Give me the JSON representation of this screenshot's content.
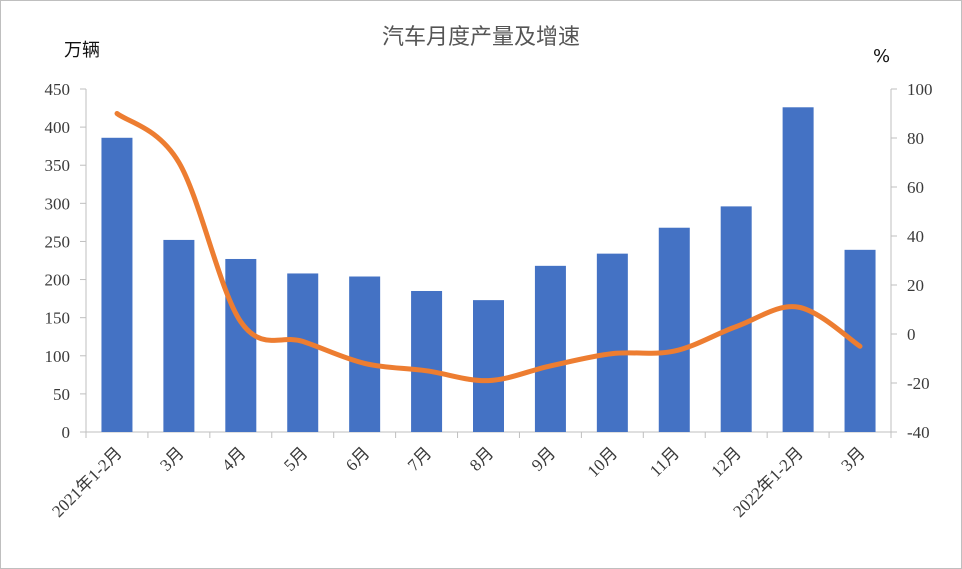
{
  "chart_data": {
    "type": "bar",
    "title": "汽车月度产量及增速",
    "left_axis_unit": "万辆",
    "right_axis_unit": "%",
    "categories": [
      "2021年1-2月",
      "3月",
      "4月",
      "5月",
      "6月",
      "7月",
      "8月",
      "9月",
      "10月",
      "11月",
      "12月",
      "2022年1-2月",
      "3月"
    ],
    "series": [
      {
        "type": "bar",
        "axis": "left",
        "color": "#4472c4",
        "values": [
          386,
          252,
          227,
          208,
          204,
          185,
          173,
          218,
          234,
          268,
          296,
          426,
          239
        ]
      },
      {
        "type": "line",
        "axis": "right",
        "color": "#ed7d31",
        "values": [
          90,
          70,
          5,
          -3,
          -12,
          -15,
          -19,
          -13,
          -8,
          -7,
          3,
          11,
          -5
        ]
      }
    ],
    "ylim_left": [
      0,
      450
    ],
    "yticks_left": [
      0,
      50,
      100,
      150,
      200,
      250,
      300,
      350,
      400,
      450
    ],
    "ylim_right": [
      -40,
      100
    ],
    "yticks_right": [
      -40,
      -20,
      0,
      20,
      40,
      60,
      80,
      100
    ],
    "grid": false,
    "legend": "none"
  }
}
